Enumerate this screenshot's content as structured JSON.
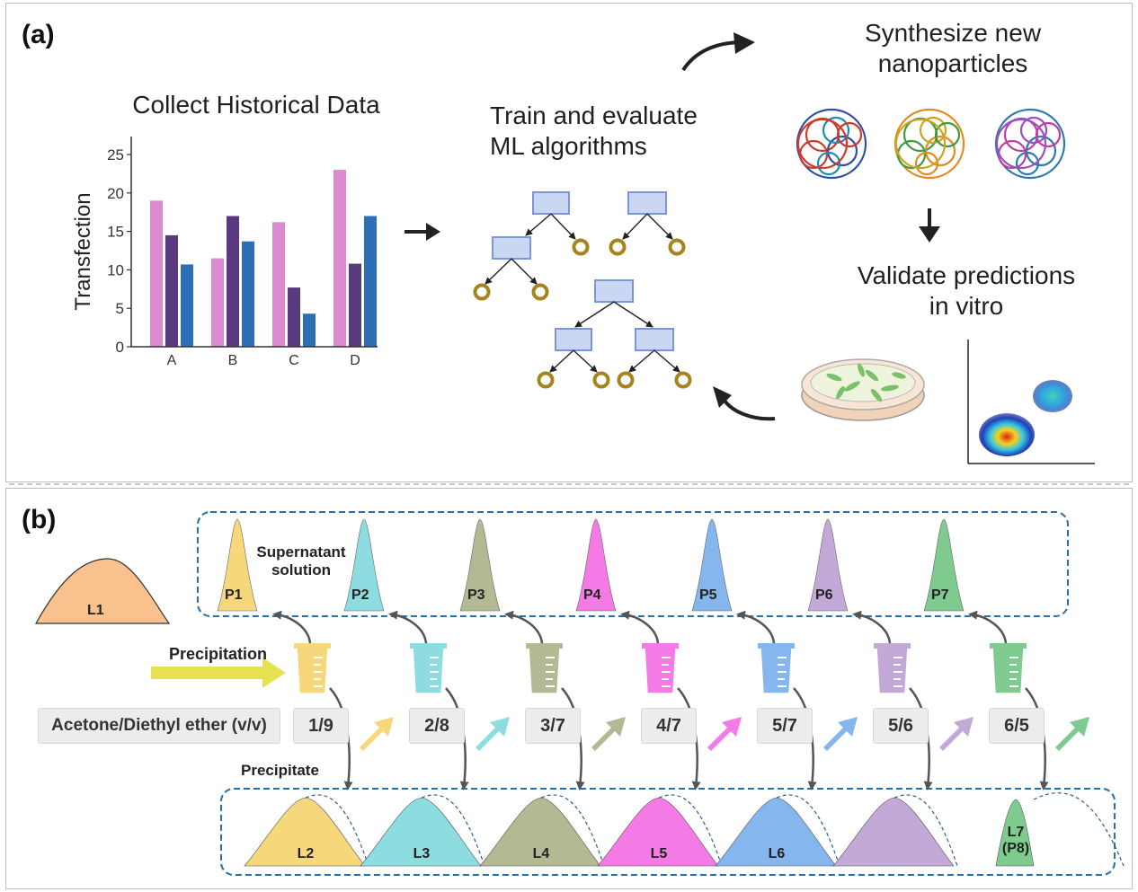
{
  "panel_a": {
    "label": "(a)",
    "collect_title": "Collect Historical Data",
    "train_title_line1": "Train and evaluate",
    "train_title_line2": "ML algorithms",
    "synth_title_line1": "Synthesize new",
    "synth_title_line2": "nanoparticles",
    "validate_title_line1": "Validate predictions",
    "validate_title_line2": "in vitro"
  },
  "chart_data": {
    "type": "bar",
    "title": "Collect Historical Data",
    "xlabel": "",
    "ylabel": "Transfection",
    "categories": [
      "A",
      "B",
      "C",
      "D"
    ],
    "ylim": [
      0,
      25
    ],
    "yticks": [
      "0",
      "5",
      "10",
      "15",
      "20",
      "25"
    ],
    "series": [
      {
        "color": "#d98ad0",
        "values": [
          19,
          11.5,
          16.2,
          23
        ]
      },
      {
        "color": "#5a3a7e",
        "values": [
          14.5,
          17,
          7.7,
          10.8
        ]
      },
      {
        "color": "#2c6fb7",
        "values": [
          10.7,
          13.7,
          4.3,
          17
        ]
      }
    ]
  },
  "panel_b": {
    "label": "(b)",
    "start_fraction": "L1",
    "supernatant_label_line1": "Supernatant",
    "supernatant_label_line2": "solution",
    "precipitation_label": "Precipitation",
    "precipitate_label": "Precipitate",
    "solvent_label": "Acetone/Diethyl ether (v/v)",
    "steps": [
      {
        "ratio": "1/9",
        "p": "P1",
        "l": "L2",
        "color": "#f6d77c"
      },
      {
        "ratio": "2/8",
        "p": "P2",
        "l": "L3",
        "color": "#8ddde0"
      },
      {
        "ratio": "3/7",
        "p": "P3",
        "l": "L4",
        "color": "#b4b994"
      },
      {
        "ratio": "4/7",
        "p": "P4",
        "l": "L5",
        "color": "#f47be6"
      },
      {
        "ratio": "5/7",
        "p": "P5",
        "l": "L6",
        "color": "#86b6ee"
      },
      {
        "ratio": "5/6",
        "p": "P6",
        "l": "",
        "color": "#c3a9d7"
      },
      {
        "ratio": "6/5",
        "p": "P7",
        "l": "L7",
        "color": "#7fca8e"
      }
    ],
    "last_precipitate_sub": "(P8)"
  }
}
